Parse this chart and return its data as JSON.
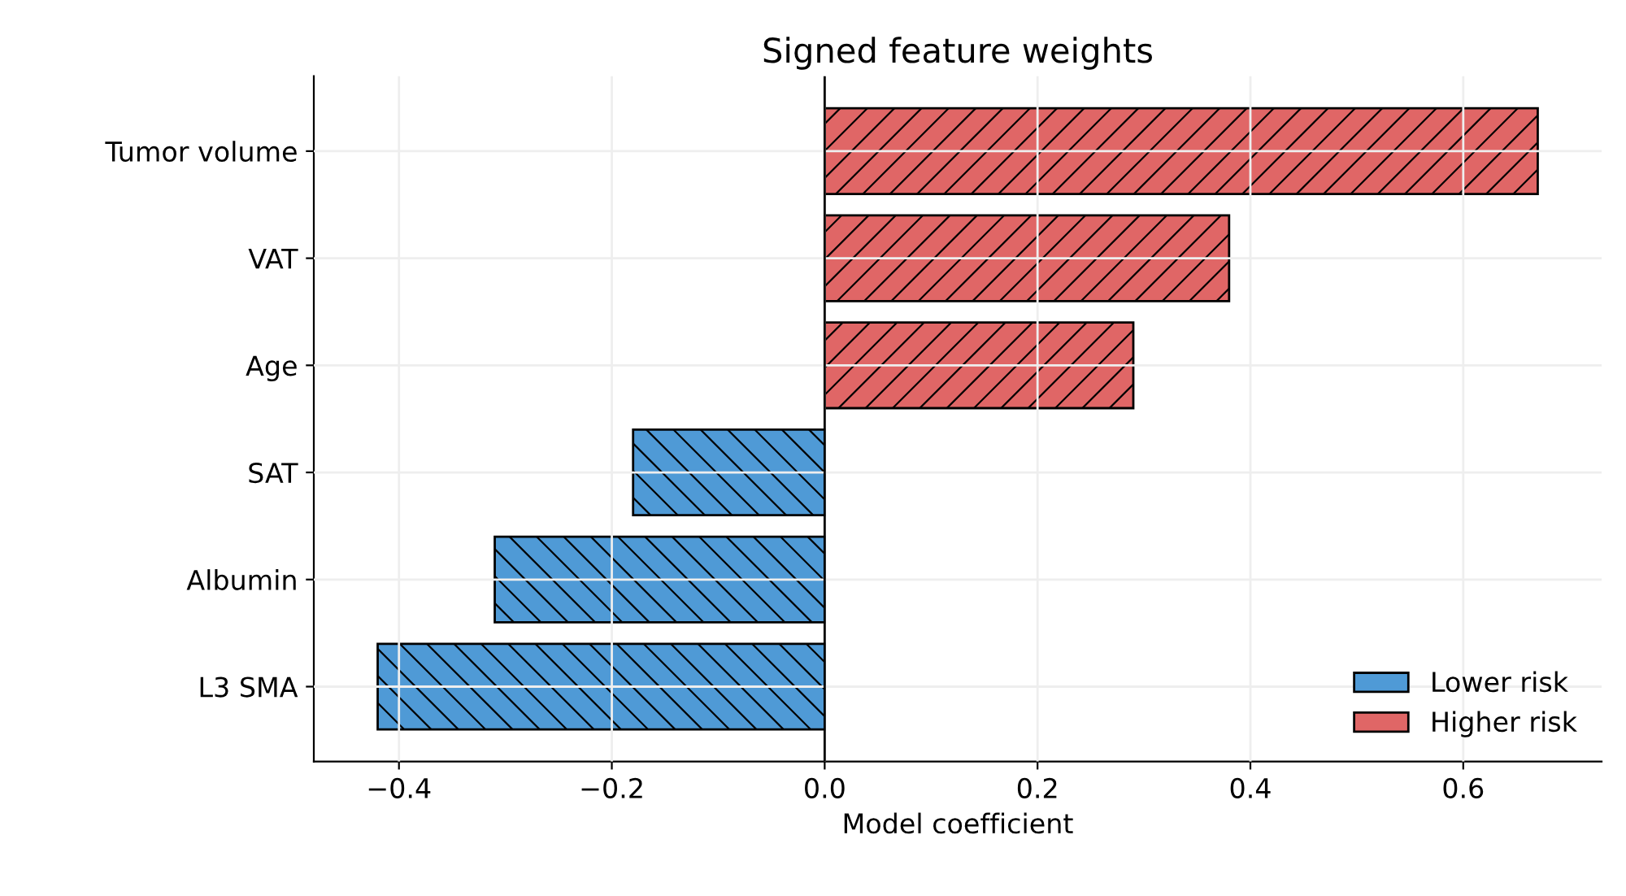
{
  "chart_data": {
    "type": "bar",
    "orientation": "horizontal",
    "title": "Signed feature weights",
    "xlabel": "Model coefficient",
    "categories": [
      "Tumor volume",
      "VAT",
      "Age",
      "SAT",
      "Albumin",
      "L3 SMA"
    ],
    "series": [
      {
        "name": "Lower risk",
        "color": "#4f9ad6",
        "values": [
          null,
          null,
          null,
          -0.18,
          -0.31,
          -0.42
        ]
      },
      {
        "name": "Higher risk",
        "color": "#e06666",
        "values": [
          0.67,
          0.38,
          0.29,
          null,
          null,
          null
        ]
      }
    ],
    "xlim": [
      -0.48,
      0.73
    ],
    "xticks": [
      {
        "value": -0.4,
        "label": "−0.4"
      },
      {
        "value": -0.2,
        "label": "−0.2"
      },
      {
        "value": 0.0,
        "label": "0.0"
      },
      0.2,
      0.4,
      0.6
    ],
    "ref_lines": [
      {
        "axis": "x",
        "value": 0,
        "color": "#000000"
      }
    ],
    "grid": true,
    "legend": "lower right"
  }
}
